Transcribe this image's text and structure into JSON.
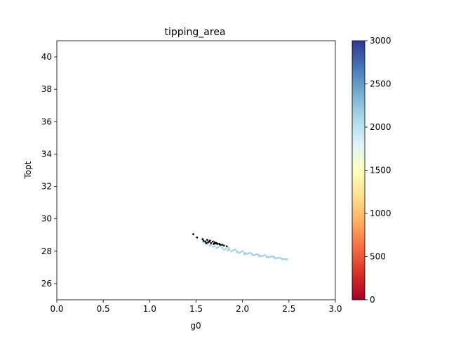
{
  "chart_data": {
    "type": "scatter",
    "title": "tipping_area",
    "xlabel": "g0",
    "ylabel": "Topt",
    "xlim": [
      0,
      3
    ],
    "ylim": [
      25,
      41
    ],
    "xticks": [
      0.0,
      0.5,
      1.0,
      1.5,
      2.0,
      2.5,
      3.0
    ],
    "xtick_labels": [
      "0.0",
      "0.5",
      "1.0",
      "1.5",
      "2.0",
      "2.5",
      "3.0"
    ],
    "yticks": [
      26,
      28,
      30,
      32,
      34,
      36,
      38,
      40
    ],
    "ytick_labels": [
      "26",
      "28",
      "30",
      "32",
      "34",
      "36",
      "38",
      "40"
    ],
    "grid": false,
    "colorbar": {
      "colormap": "RdYlBu",
      "range": [
        0,
        3000
      ],
      "ticks": [
        0,
        500,
        1000,
        1500,
        2000,
        2500,
        3000
      ],
      "tick_labels": [
        "0",
        "500",
        "1000",
        "1500",
        "2000",
        "2500",
        "3000"
      ],
      "stops": [
        "#a50026",
        "#d73027",
        "#f46d43",
        "#fdae61",
        "#fee090",
        "#ffffbf",
        "#e0f3f8",
        "#abd9e9",
        "#74add1",
        "#4575b4",
        "#313695"
      ]
    },
    "series": [
      {
        "color_value": 2150,
        "color": "#9ecfe3",
        "points": [
          [
            1.58,
            28.55
          ],
          [
            1.62,
            28.45
          ],
          [
            1.66,
            28.4
          ],
          [
            1.7,
            28.3
          ],
          [
            1.74,
            28.25
          ],
          [
            1.78,
            28.2
          ],
          [
            1.82,
            28.15
          ],
          [
            1.86,
            28.1
          ],
          [
            1.9,
            28.05
          ],
          [
            1.94,
            28.0
          ],
          [
            1.98,
            27.95
          ],
          [
            2.02,
            27.9
          ],
          [
            2.06,
            27.85
          ],
          [
            2.1,
            27.8
          ],
          [
            2.14,
            27.78
          ],
          [
            2.18,
            27.75
          ],
          [
            2.22,
            27.72
          ],
          [
            2.26,
            27.68
          ],
          [
            2.3,
            27.65
          ],
          [
            2.34,
            27.6
          ],
          [
            2.38,
            27.58
          ],
          [
            2.42,
            27.55
          ],
          [
            2.46,
            27.52
          ],
          [
            2.48,
            27.5
          ],
          [
            1.6,
            28.5
          ],
          [
            1.65,
            28.35
          ],
          [
            1.72,
            28.2
          ],
          [
            1.76,
            28.3
          ],
          [
            1.8,
            28.1
          ],
          [
            1.85,
            28.2
          ],
          [
            1.88,
            28.0
          ],
          [
            1.92,
            28.1
          ],
          [
            1.96,
            27.9
          ],
          [
            2.0,
            28.0
          ],
          [
            2.04,
            27.85
          ],
          [
            2.08,
            27.9
          ],
          [
            2.12,
            27.75
          ],
          [
            2.16,
            27.82
          ],
          [
            2.2,
            27.7
          ],
          [
            2.24,
            27.76
          ],
          [
            2.28,
            27.62
          ],
          [
            2.32,
            27.68
          ],
          [
            2.36,
            27.56
          ],
          [
            2.4,
            27.6
          ],
          [
            2.44,
            27.5
          ],
          [
            1.68,
            28.28
          ],
          [
            1.84,
            28.05
          ],
          [
            1.94,
            27.95
          ],
          [
            2.02,
            27.82
          ],
          [
            2.1,
            27.86
          ],
          [
            2.18,
            27.7
          ],
          [
            2.26,
            27.63
          ],
          [
            2.34,
            27.64
          ],
          [
            2.42,
            27.52
          ]
        ]
      },
      {
        "color_value": null,
        "color": "#000000",
        "points": [
          [
            1.47,
            29.05
          ],
          [
            1.51,
            28.85
          ],
          [
            1.57,
            28.75
          ],
          [
            1.58,
            28.65
          ],
          [
            1.6,
            28.6
          ],
          [
            1.62,
            28.7
          ],
          [
            1.63,
            28.55
          ],
          [
            1.65,
            28.65
          ],
          [
            1.66,
            28.5
          ],
          [
            1.68,
            28.6
          ],
          [
            1.69,
            28.45
          ],
          [
            1.7,
            28.55
          ],
          [
            1.72,
            28.5
          ],
          [
            1.73,
            28.45
          ],
          [
            1.75,
            28.45
          ],
          [
            1.76,
            28.4
          ],
          [
            1.78,
            28.4
          ],
          [
            1.8,
            28.35
          ],
          [
            1.83,
            28.3
          ],
          [
            1.61,
            28.5
          ],
          [
            1.64,
            28.6
          ],
          [
            1.71,
            28.48
          ]
        ]
      }
    ]
  }
}
